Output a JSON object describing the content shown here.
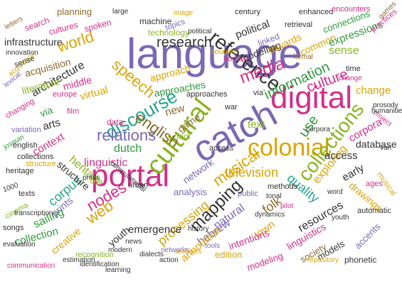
{
  "palette": {
    "purple": "#7a68b5",
    "magenta": "#d42e8b",
    "pink": "#e95ca7",
    "gold": "#d9a406",
    "olive": "#a39b10",
    "lime": "#8ab520",
    "green": "#2e9a3a",
    "teal": "#22a58c",
    "brown": "#8a6a2a",
    "gray": "#777777",
    "dark": "#333333"
  },
  "words": [
    "letters",
    "search",
    "cultures",
    "planning",
    "spoken",
    "large",
    "machine",
    "image",
    "century",
    "enhanced",
    "encounters",
    "games",
    "practices",
    "infrastructure",
    "knowledge",
    "world",
    "technology",
    "topics",
    "political",
    "retrieval",
    "connections",
    "expressions",
    "innovation",
    "european",
    "research",
    "reference",
    "linked",
    "sense",
    "acquisition",
    "medieval",
    "architecture",
    "language",
    "sources",
    "human",
    "formal",
    "towards",
    "common",
    "lexical",
    "literature",
    "middle",
    "speech",
    "approach",
    "media",
    "modelling",
    "information",
    "culture",
    "prosody",
    "analyzing",
    "europe",
    "mining",
    "virtual",
    "approaches",
    "change",
    "digital",
    "time",
    "changing",
    "film",
    "historical",
    "discourse",
    "cultural",
    "via",
    "reading",
    "variation",
    "study",
    "arts",
    "new",
    "tool",
    "data",
    "war",
    "relations",
    "game",
    "project",
    "humanities",
    "united",
    "online",
    "text",
    "use",
    "josquin",
    "english",
    "access",
    "corpora",
    "context",
    "dutch",
    "catch",
    "colonial",
    "case",
    "database",
    "van",
    "social",
    "using",
    "linguistic",
    "network",
    "television",
    "collections",
    "early",
    "structure",
    "exploring",
    "heritage",
    "portal",
    "ages",
    "urban",
    "methods",
    "drawings",
    "1000",
    "computational",
    "literary",
    "musical",
    "texts",
    "netherlands",
    "quality",
    "analysis",
    "nodes",
    "prints",
    "tonal",
    "word",
    "automatic",
    "corpus",
    "music",
    "web",
    "mapping",
    "public",
    "natural",
    "folk",
    "cinema",
    "dynamics",
    "pilot",
    "system",
    "resources",
    "transcription",
    "sailing",
    "global",
    "processing",
    "songs",
    "youth",
    "hebrew",
    "modern",
    "history",
    "intentions",
    "town",
    "emergence",
    "evaluation",
    "annotation",
    "edition",
    "linguistics",
    "collection",
    "tools",
    "creative",
    "news",
    "networks",
    "archives",
    "society",
    "accents",
    "models",
    "recognition",
    "dialects",
    "action",
    "modeling",
    "repository",
    "estimation",
    "identification",
    "phonetic",
    "communication",
    "learning"
  ]
}
